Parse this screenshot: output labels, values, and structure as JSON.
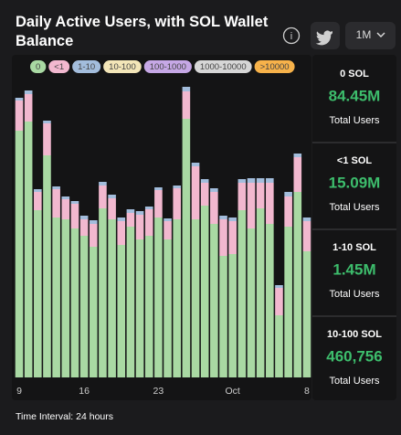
{
  "header": {
    "title": "Daily Active Users, with SOL Wallet Balance",
    "timeframe": "1M"
  },
  "chart_data": {
    "type": "stacked_bar",
    "categories": [
      "9",
      null,
      null,
      null,
      null,
      null,
      null,
      "16",
      null,
      null,
      null,
      null,
      null,
      null,
      null,
      "23",
      null,
      null,
      null,
      null,
      null,
      null,
      null,
      "Oct",
      null,
      null,
      null,
      null,
      null,
      null,
      null,
      "8"
    ],
    "series": [
      {
        "name": "0",
        "color": "#a9d9a3",
        "values": [
          2.7,
          2.8,
          1.83,
          2.43,
          1.75,
          1.73,
          1.63,
          1.55,
          1.43,
          1.85,
          1.73,
          1.45,
          1.65,
          1.51,
          1.55,
          1.75,
          1.51,
          1.73,
          2.83,
          1.73,
          1.88,
          1.68,
          1.33,
          1.35,
          1.83,
          1.63,
          1.85,
          1.68,
          0.68,
          1.65,
          2.03,
          1.38
        ]
      },
      {
        "name": "<1",
        "color": "#f2b8cf",
        "values": [
          0.33,
          0.3,
          0.2,
          0.35,
          0.31,
          0.22,
          0.27,
          0.18,
          0.25,
          0.25,
          0.23,
          0.26,
          0.15,
          0.27,
          0.29,
          0.3,
          0.2,
          0.34,
          0.3,
          0.58,
          0.25,
          0.35,
          0.4,
          0.36,
          0.3,
          0.5,
          0.28,
          0.45,
          0.3,
          0.33,
          0.38,
          0.33
        ]
      },
      {
        "name": "1-10",
        "color": "#a3bddc",
        "values": [
          0.03,
          0.04,
          0.03,
          0.03,
          0.03,
          0.03,
          0.03,
          0.04,
          0.04,
          0.04,
          0.04,
          0.04,
          0.04,
          0.04,
          0.03,
          0.03,
          0.03,
          0.03,
          0.05,
          0.04,
          0.04,
          0.04,
          0.04,
          0.04,
          0.04,
          0.05,
          0.05,
          0.05,
          0.03,
          0.05,
          0.04,
          0.04
        ]
      }
    ],
    "extra_legend": [
      {
        "name": "10-100",
        "color": "#f3e6b8"
      },
      {
        "name": "100-1000",
        "color": "#c6a8e6"
      },
      {
        "name": "1000-10000",
        "color": "#d6d6d6"
      },
      {
        "name": ">10000",
        "color": "#f7b24a"
      }
    ],
    "ylim": [
      0,
      3.5
    ]
  },
  "stats": [
    {
      "label": "0 SOL",
      "value": "84.45M",
      "caption": "Total Users"
    },
    {
      "label": "<1 SOL",
      "value": "15.09M",
      "caption": "Total Users"
    },
    {
      "label": "1-10 SOL",
      "value": "1.45M",
      "caption": "Total Users"
    },
    {
      "label": "10-100 SOL",
      "value": "460,756",
      "caption": "Total Users"
    }
  ],
  "footer": "Time Interval: 24 hours"
}
